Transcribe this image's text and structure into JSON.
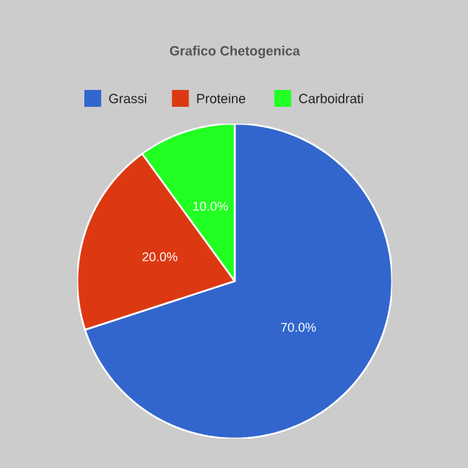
{
  "chart_data": {
    "type": "pie",
    "title": "Grafico Chetogenica",
    "categories": [
      "Grassi",
      "Proteine",
      "Carboidrati"
    ],
    "values": [
      70,
      20,
      10
    ],
    "colors": [
      "#3366cc",
      "#dc3912",
      "#22ff22"
    ],
    "value_labels": [
      "70.0%",
      "20.0%",
      "10.0%"
    ],
    "legend": "top"
  }
}
